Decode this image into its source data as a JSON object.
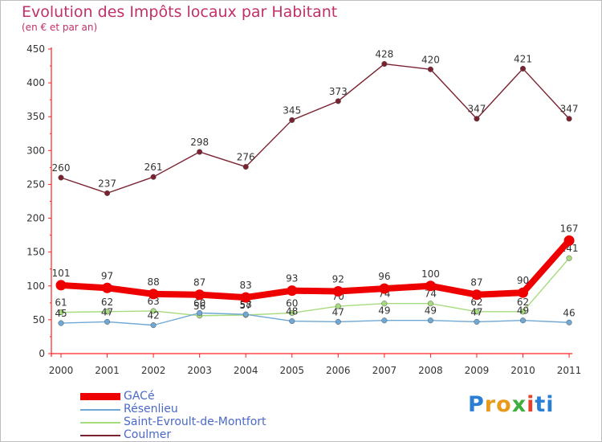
{
  "chart_data": {
    "type": "line",
    "title": "Evolution des Impôts locaux par Habitant",
    "subtitle": "(en € et par an)",
    "xlabel": "",
    "ylabel": "",
    "ylim": [
      0,
      450
    ],
    "yticks": [
      "0",
      "50",
      "100",
      "150",
      "200",
      "250",
      "300",
      "350",
      "400",
      "450"
    ],
    "categories": [
      "2000",
      "2001",
      "2002",
      "2003",
      "2004",
      "2005",
      "2006",
      "2007",
      "2008",
      "2009",
      "2010",
      "2011"
    ],
    "series": [
      {
        "name": "Coulmer",
        "color": "#7a2230",
        "values": [
          260,
          237,
          261,
          298,
          276,
          345,
          373,
          428,
          420,
          347,
          421,
          347
        ],
        "labels": [
          "260",
          "237",
          "261",
          "298",
          "276",
          "345",
          "373",
          "428",
          "420",
          "347",
          "421",
          "347"
        ]
      },
      {
        "name": "Saint-Evroult-de-Montfort",
        "color": "#a6dc7e",
        "values": [
          61,
          62,
          63,
          56,
          57,
          60,
          70,
          74,
          74,
          62,
          62,
          141
        ],
        "labels": [
          "61",
          "62",
          "63",
          "56",
          "57",
          "60",
          "70",
          "74",
          "74",
          "62",
          "62",
          "141"
        ]
      },
      {
        "name": "Résenlieu",
        "color": "#6fa8d4",
        "values": [
          45,
          47,
          42,
          60,
          58,
          48,
          47,
          49,
          49,
          47,
          49,
          46
        ],
        "labels": [
          "45",
          "47",
          "42",
          "60",
          "58",
          "48",
          "47",
          "49",
          "49",
          "47",
          "49",
          "46"
        ]
      },
      {
        "name": "GACé",
        "color": "#ee0000",
        "values": [
          101,
          97,
          88,
          87,
          83,
          93,
          92,
          96,
          100,
          87,
          90,
          167
        ],
        "labels": [
          "101",
          "97",
          "88",
          "87",
          "83",
          "93",
          "92",
          "96",
          "100",
          "87",
          "90",
          "167"
        ]
      }
    ],
    "legend": [
      {
        "name": "GACé",
        "color": "#ee0000",
        "thickness": 9
      },
      {
        "name": "Résenlieu",
        "color": "#6fa8d4",
        "thickness": 2
      },
      {
        "name": "Saint-Evroult-de-Montfort",
        "color": "#a6dc7e",
        "thickness": 2
      },
      {
        "name": "Coulmer",
        "color": "#7a2230",
        "thickness": 2
      }
    ]
  },
  "logo": {
    "p": "P",
    "r": "r",
    "o": "o",
    "x": "x",
    "i": "i",
    "ti": "ti"
  }
}
